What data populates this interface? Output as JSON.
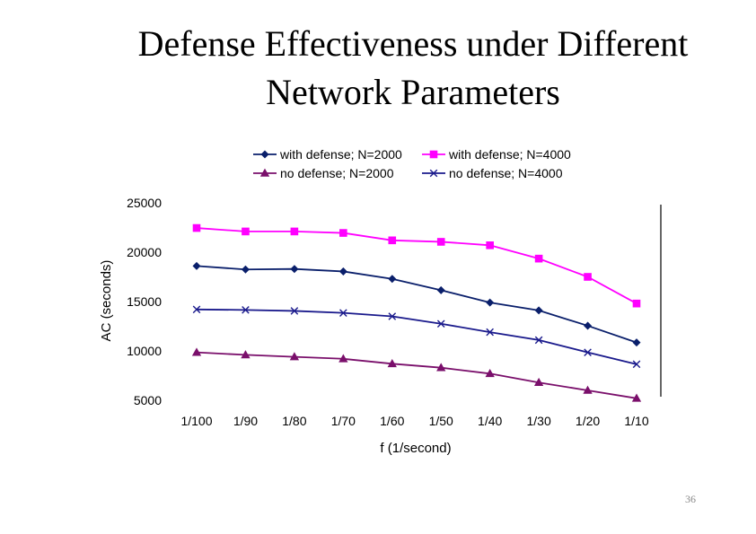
{
  "slide": {
    "title_line1": "Defense Effectiveness under Different",
    "title_line2": "Network Parameters",
    "slide_number": "36"
  },
  "chart_data": {
    "type": "line",
    "title": "",
    "xlabel": "f (1/second)",
    "ylabel": "AC (seconds)",
    "categories": [
      "1/100",
      "1/90",
      "1/80",
      "1/70",
      "1/60",
      "1/50",
      "1/40",
      "1/30",
      "1/20",
      "1/10"
    ],
    "ylim": [
      5000,
      25000
    ],
    "yticks": [
      5000,
      10000,
      15000,
      20000,
      25000
    ],
    "grid": false,
    "legend_position": "top",
    "series": [
      {
        "name": "with defense; N=2000",
        "color": "#0a1f6b",
        "marker": "diamond",
        "values": [
          18600,
          18250,
          18300,
          18050,
          17300,
          16150,
          14900,
          14100,
          12550,
          10850
        ]
      },
      {
        "name": "with defense; N=4000",
        "color": "#ff00ff",
        "marker": "square",
        "values": [
          22450,
          22100,
          22100,
          21950,
          21200,
          21050,
          20700,
          19350,
          17500,
          14800
        ]
      },
      {
        "name": "no defense; N=2000",
        "color": "#7a0f6b",
        "marker": "triangle",
        "values": [
          9850,
          9600,
          9400,
          9200,
          8700,
          8300,
          7700,
          6800,
          6000,
          5200
        ]
      },
      {
        "name": "no defense; N=4000",
        "color": "#1a1a8c",
        "marker": "x",
        "values": [
          14200,
          14150,
          14050,
          13850,
          13500,
          12750,
          11900,
          11100,
          9850,
          8650
        ]
      }
    ]
  }
}
